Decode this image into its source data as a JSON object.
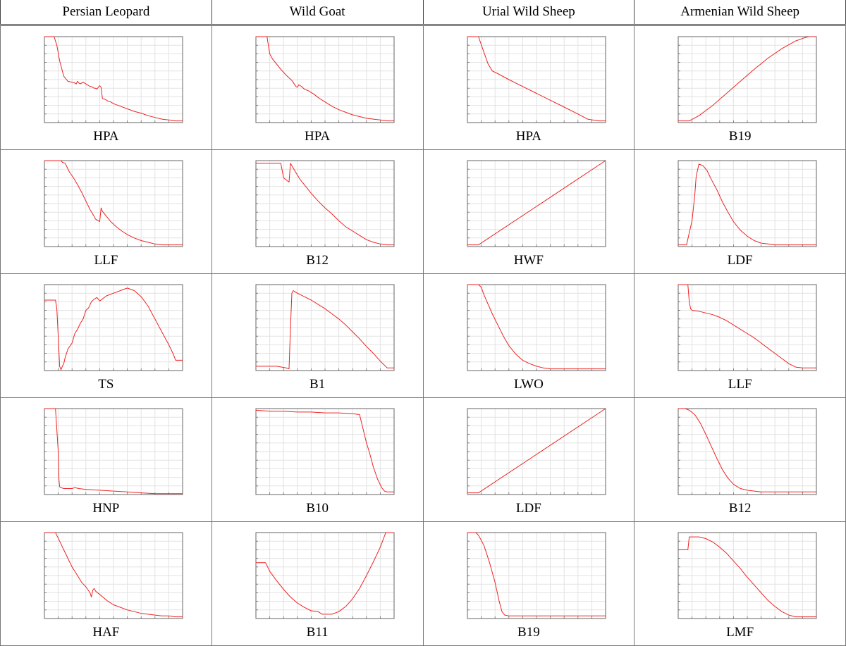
{
  "table": {
    "columns": [
      "Persian Leopard",
      "Wild Goat",
      "Urial Wild Sheep",
      "Armenian Wild Sheep"
    ],
    "rows": [
      [
        "HPA",
        "HPA",
        "HPA",
        "B19"
      ],
      [
        "LLF",
        "B12",
        "HWF",
        "LDF"
      ],
      [
        "TS",
        "B1",
        "LWO",
        "LLF"
      ],
      [
        "HNP",
        "B10",
        "LDF",
        "B12"
      ],
      [
        "HAF",
        "B11",
        "B19",
        "LMF"
      ]
    ]
  },
  "colors": {
    "curve": "#ee2222",
    "grid": "#e2e2e2",
    "axes": "#666666"
  },
  "chart_data": [
    {
      "type": "line",
      "xlabel": "",
      "ylabel": "",
      "xlim": [
        0,
        100
      ],
      "ylim": [
        0,
        1
      ],
      "x": [
        0,
        7,
        9,
        11,
        14,
        17,
        20,
        22,
        23,
        24,
        25,
        26,
        28,
        30,
        31,
        32,
        33,
        34,
        35,
        36,
        37,
        38,
        40,
        41,
        42,
        44,
        46,
        48,
        50,
        55,
        60,
        65,
        70,
        75,
        80,
        85,
        90,
        95,
        98,
        100
      ],
      "y": [
        1,
        1,
        0.9,
        0.72,
        0.54,
        0.48,
        0.47,
        0.46,
        0.45,
        0.48,
        0.46,
        0.45,
        0.47,
        0.45,
        0.44,
        0.43,
        0.42,
        0.42,
        0.41,
        0.4,
        0.4,
        0.39,
        0.43,
        0.41,
        0.28,
        0.27,
        0.25,
        0.24,
        0.22,
        0.19,
        0.16,
        0.13,
        0.11,
        0.08,
        0.06,
        0.04,
        0.03,
        0.02,
        0.02,
        0.02
      ]
    },
    {
      "type": "line",
      "xlabel": "",
      "ylabel": "",
      "xlim": [
        0,
        100
      ],
      "ylim": [
        0,
        1
      ],
      "x": [
        0,
        8,
        10,
        12,
        15,
        18,
        22,
        26,
        29,
        30,
        31,
        32,
        33,
        35,
        38,
        42,
        46,
        50,
        55,
        60,
        65,
        70,
        75,
        80,
        85,
        90,
        95,
        100
      ],
      "y": [
        1,
        1,
        0.8,
        0.74,
        0.68,
        0.62,
        0.55,
        0.49,
        0.42,
        0.41,
        0.44,
        0.43,
        0.42,
        0.39,
        0.37,
        0.33,
        0.28,
        0.24,
        0.19,
        0.15,
        0.12,
        0.09,
        0.07,
        0.05,
        0.04,
        0.03,
        0.02,
        0.02
      ]
    },
    {
      "type": "line",
      "xlabel": "",
      "ylabel": "",
      "xlim": [
        0,
        100
      ],
      "ylim": [
        0,
        1
      ],
      "x": [
        0,
        8,
        11,
        15,
        18,
        22,
        30,
        40,
        50,
        60,
        70,
        80,
        87,
        95,
        100
      ],
      "y": [
        1,
        1,
        0.86,
        0.68,
        0.6,
        0.57,
        0.5,
        0.42,
        0.34,
        0.26,
        0.18,
        0.1,
        0.04,
        0.02,
        0.02
      ]
    },
    {
      "type": "line",
      "xlabel": "",
      "ylabel": "",
      "xlim": [
        0,
        100
      ],
      "ylim": [
        0,
        1
      ],
      "x": [
        0,
        8,
        15,
        25,
        35,
        45,
        55,
        65,
        75,
        85,
        92,
        95,
        100
      ],
      "y": [
        0.02,
        0.02,
        0.08,
        0.2,
        0.34,
        0.48,
        0.62,
        0.75,
        0.86,
        0.95,
        0.99,
        1,
        1
      ]
    },
    {
      "type": "line",
      "xlabel": "",
      "ylabel": "",
      "xlim": [
        0,
        100
      ],
      "ylim": [
        0,
        1
      ],
      "x": [
        0,
        12,
        13,
        15,
        18,
        21,
        24,
        27,
        30,
        33,
        36,
        37,
        38,
        39,
        40,
        41,
        42,
        45,
        48,
        52,
        56,
        60,
        65,
        70,
        75,
        80,
        85,
        90,
        95,
        100
      ],
      "y": [
        1,
        1,
        0.98,
        0.97,
        0.87,
        0.8,
        0.72,
        0.63,
        0.53,
        0.43,
        0.35,
        0.32,
        0.31,
        0.3,
        0.29,
        0.45,
        0.41,
        0.35,
        0.29,
        0.23,
        0.18,
        0.14,
        0.1,
        0.07,
        0.05,
        0.03,
        0.02,
        0.02,
        0.02,
        0.02
      ]
    },
    {
      "type": "line",
      "xlabel": "",
      "ylabel": "",
      "xlim": [
        0,
        100
      ],
      "ylim": [
        0,
        1
      ],
      "x": [
        0,
        5,
        10,
        18,
        20,
        24,
        25,
        29,
        32,
        36,
        40,
        45,
        50,
        55,
        60,
        65,
        70,
        75,
        80,
        85,
        90,
        95,
        100
      ],
      "y": [
        0.97,
        0.97,
        0.97,
        0.97,
        0.8,
        0.75,
        0.97,
        0.86,
        0.78,
        0.7,
        0.62,
        0.53,
        0.45,
        0.38,
        0.3,
        0.23,
        0.18,
        0.13,
        0.08,
        0.05,
        0.03,
        0.02,
        0.02
      ]
    },
    {
      "type": "line",
      "xlabel": "",
      "ylabel": "",
      "xlim": [
        0,
        100
      ],
      "ylim": [
        0,
        1
      ],
      "x": [
        0,
        8,
        100
      ],
      "y": [
        0.02,
        0.02,
        1
      ]
    },
    {
      "type": "line",
      "xlabel": "",
      "ylabel": "",
      "xlim": [
        0,
        100
      ],
      "ylim": [
        0,
        1
      ],
      "x": [
        0,
        6,
        10,
        12,
        13,
        15,
        18,
        21,
        24,
        28,
        32,
        36,
        40,
        45,
        50,
        55,
        60,
        65,
        70,
        75,
        80,
        85,
        90,
        95,
        100
      ],
      "y": [
        0.02,
        0.02,
        0.3,
        0.6,
        0.82,
        0.96,
        0.94,
        0.88,
        0.78,
        0.66,
        0.52,
        0.4,
        0.29,
        0.19,
        0.12,
        0.07,
        0.04,
        0.03,
        0.02,
        0.02,
        0.02,
        0.02,
        0.02,
        0.02,
        0.02
      ]
    },
    {
      "type": "line",
      "xlabel": "",
      "ylabel": "",
      "xlim": [
        0,
        100
      ],
      "ylim": [
        0,
        1
      ],
      "x": [
        0,
        8,
        9,
        10,
        11,
        12,
        13,
        14,
        15,
        16,
        17,
        20,
        22,
        24,
        26,
        28,
        30,
        32,
        34,
        36,
        38,
        40,
        45,
        50,
        55,
        60,
        65,
        70,
        75,
        80,
        85,
        90,
        93,
        95,
        100
      ],
      "y": [
        0.82,
        0.82,
        0.72,
        0.4,
        0.05,
        0.01,
        0.05,
        0.08,
        0.15,
        0.2,
        0.25,
        0.32,
        0.43,
        0.48,
        0.55,
        0.6,
        0.7,
        0.73,
        0.8,
        0.83,
        0.85,
        0.81,
        0.87,
        0.9,
        0.93,
        0.96,
        0.93,
        0.86,
        0.75,
        0.6,
        0.45,
        0.3,
        0.2,
        0.12,
        0.12
      ]
    },
    {
      "type": "line",
      "xlabel": "",
      "ylabel": "",
      "xlim": [
        0,
        100
      ],
      "ylim": [
        0,
        1
      ],
      "x": [
        0,
        8,
        15,
        22,
        24,
        25,
        26,
        27,
        28,
        30,
        35,
        40,
        45,
        50,
        55,
        60,
        65,
        70,
        75,
        80,
        85,
        90,
        95,
        100
      ],
      "y": [
        0.05,
        0.05,
        0.05,
        0.03,
        0.02,
        0.5,
        0.9,
        0.93,
        0.92,
        0.9,
        0.86,
        0.82,
        0.77,
        0.72,
        0.66,
        0.6,
        0.53,
        0.45,
        0.37,
        0.28,
        0.2,
        0.11,
        0.03,
        0.03
      ]
    },
    {
      "type": "line",
      "xlabel": "",
      "ylabel": "",
      "xlim": [
        0,
        100
      ],
      "ylim": [
        0,
        1
      ],
      "x": [
        0,
        8,
        10,
        12,
        15,
        18,
        22,
        26,
        30,
        35,
        40,
        45,
        50,
        55,
        60,
        65,
        70,
        75,
        80,
        85,
        90,
        95,
        100
      ],
      "y": [
        1,
        1,
        0.97,
        0.88,
        0.77,
        0.66,
        0.53,
        0.4,
        0.29,
        0.19,
        0.12,
        0.08,
        0.05,
        0.03,
        0.02,
        0.02,
        0.02,
        0.02,
        0.02,
        0.02,
        0.02,
        0.02,
        0.02
      ]
    },
    {
      "type": "line",
      "xlabel": "",
      "ylabel": "",
      "xlim": [
        0,
        100
      ],
      "ylim": [
        0,
        1
      ],
      "x": [
        0,
        7,
        8,
        9,
        10,
        15,
        20,
        25,
        30,
        35,
        40,
        45,
        50,
        55,
        60,
        65,
        70,
        75,
        80,
        85,
        90,
        95,
        100
      ],
      "y": [
        1,
        1,
        0.8,
        0.72,
        0.7,
        0.69,
        0.67,
        0.65,
        0.62,
        0.58,
        0.53,
        0.48,
        0.43,
        0.38,
        0.32,
        0.26,
        0.2,
        0.14,
        0.08,
        0.04,
        0.03,
        0.03,
        0.03
      ]
    },
    {
      "type": "line",
      "xlabel": "",
      "ylabel": "",
      "xlim": [
        0,
        100
      ],
      "ylim": [
        0,
        1
      ],
      "x": [
        0,
        8,
        10,
        10.5,
        11,
        12,
        14,
        20,
        22,
        25,
        30,
        40,
        50,
        60,
        70,
        80,
        90,
        100
      ],
      "y": [
        1,
        1,
        0.5,
        0.18,
        0.09,
        0.08,
        0.07,
        0.07,
        0.08,
        0.07,
        0.06,
        0.05,
        0.04,
        0.03,
        0.02,
        0.01,
        0.01,
        0.01
      ]
    },
    {
      "type": "line",
      "xlabel": "",
      "ylabel": "",
      "xlim": [
        0,
        100
      ],
      "ylim": [
        0,
        1
      ],
      "x": [
        0,
        10,
        20,
        30,
        40,
        50,
        60,
        70,
        75,
        77,
        80,
        82,
        85,
        88,
        91,
        93,
        95,
        100
      ],
      "y": [
        0.98,
        0.97,
        0.97,
        0.96,
        0.96,
        0.95,
        0.95,
        0.94,
        0.93,
        0.8,
        0.6,
        0.5,
        0.32,
        0.18,
        0.08,
        0.04,
        0.03,
        0.03
      ]
    },
    {
      "type": "line",
      "xlabel": "",
      "ylabel": "",
      "xlim": [
        0,
        100
      ],
      "ylim": [
        0,
        1
      ],
      "x": [
        0,
        8,
        100
      ],
      "y": [
        0.02,
        0.02,
        1
      ]
    },
    {
      "type": "line",
      "xlabel": "",
      "ylabel": "",
      "xlim": [
        0,
        100
      ],
      "ylim": [
        0,
        1
      ],
      "x": [
        0,
        5,
        8,
        12,
        16,
        20,
        24,
        28,
        32,
        36,
        40,
        45,
        50,
        55,
        60,
        65,
        70,
        75,
        80,
        90,
        100
      ],
      "y": [
        1,
        1,
        0.98,
        0.93,
        0.83,
        0.7,
        0.56,
        0.42,
        0.29,
        0.19,
        0.12,
        0.07,
        0.05,
        0.04,
        0.03,
        0.03,
        0.03,
        0.03,
        0.03,
        0.03,
        0.03
      ]
    },
    {
      "type": "line",
      "xlabel": "",
      "ylabel": "",
      "xlim": [
        0,
        100
      ],
      "ylim": [
        0,
        1
      ],
      "x": [
        0,
        8,
        11,
        14,
        17,
        20,
        24,
        27,
        30,
        33,
        34,
        35,
        36,
        37,
        40,
        43,
        46,
        50,
        55,
        60,
        65,
        70,
        75,
        80,
        85,
        90,
        95,
        100
      ],
      "y": [
        1,
        1,
        0.9,
        0.8,
        0.7,
        0.6,
        0.5,
        0.42,
        0.37,
        0.3,
        0.25,
        0.33,
        0.35,
        0.32,
        0.28,
        0.24,
        0.2,
        0.16,
        0.13,
        0.1,
        0.08,
        0.06,
        0.05,
        0.04,
        0.03,
        0.03,
        0.02,
        0.02
      ]
    },
    {
      "type": "line",
      "xlabel": "",
      "ylabel": "",
      "xlim": [
        0,
        100
      ],
      "ylim": [
        0,
        1
      ],
      "x": [
        0,
        7,
        10,
        15,
        20,
        25,
        30,
        35,
        40,
        45,
        48,
        50,
        52,
        55,
        60,
        65,
        70,
        75,
        80,
        85,
        90,
        94,
        100
      ],
      "y": [
        0.65,
        0.65,
        0.55,
        0.44,
        0.34,
        0.25,
        0.18,
        0.13,
        0.09,
        0.08,
        0.05,
        0.05,
        0.05,
        0.05,
        0.08,
        0.14,
        0.23,
        0.35,
        0.5,
        0.66,
        0.83,
        1,
        1
      ]
    },
    {
      "type": "line",
      "xlabel": "",
      "ylabel": "",
      "xlim": [
        0,
        100
      ],
      "ylim": [
        0,
        1
      ],
      "x": [
        0,
        6,
        8,
        12,
        16,
        20,
        23,
        25,
        27,
        30,
        35,
        40,
        50,
        60,
        70,
        80,
        90,
        100
      ],
      "y": [
        1,
        1,
        0.97,
        0.85,
        0.65,
        0.42,
        0.2,
        0.08,
        0.04,
        0.03,
        0.03,
        0.03,
        0.03,
        0.03,
        0.03,
        0.03,
        0.03,
        0.03
      ]
    },
    {
      "type": "line",
      "xlabel": "",
      "ylabel": "",
      "xlim": [
        0,
        100
      ],
      "ylim": [
        0,
        1
      ],
      "x": [
        0,
        7,
        8,
        10,
        12,
        15,
        20,
        25,
        30,
        35,
        40,
        45,
        50,
        55,
        60,
        65,
        70,
        75,
        80,
        85,
        90,
        95,
        100
      ],
      "y": [
        0.8,
        0.8,
        0.95,
        0.95,
        0.95,
        0.95,
        0.93,
        0.89,
        0.83,
        0.76,
        0.67,
        0.58,
        0.48,
        0.39,
        0.3,
        0.21,
        0.14,
        0.08,
        0.04,
        0.02,
        0.02,
        0.02,
        0.02
      ]
    }
  ]
}
